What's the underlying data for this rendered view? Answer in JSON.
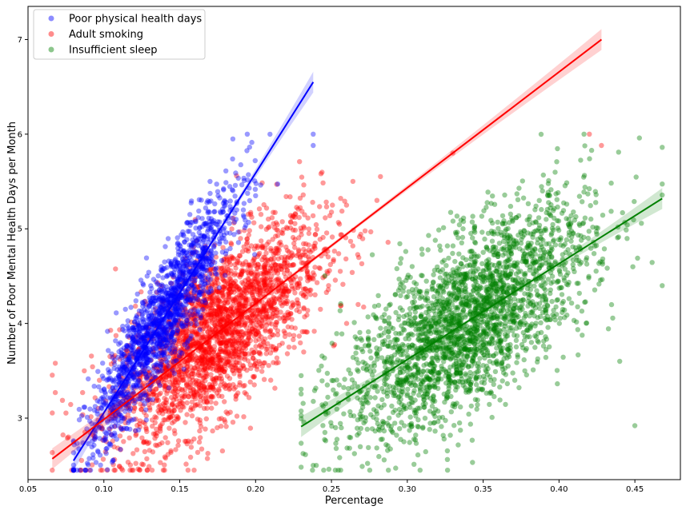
{
  "chart_data": {
    "type": "scatter",
    "title": "",
    "xlabel": "Percentage",
    "ylabel": "Number of Poor Mental Health Days per Month",
    "xlim": [
      0.05,
      0.48
    ],
    "ylim": [
      2.35,
      7.35
    ],
    "xticks": [
      "0.05",
      "0.10",
      "0.15",
      "0.20",
      "0.25",
      "0.30",
      "0.35",
      "0.40",
      "0.45"
    ],
    "yticks": [
      "3",
      "4",
      "5",
      "6",
      "7"
    ],
    "grid": false,
    "legend_position": "top-left",
    "series": [
      {
        "name": "Poor physical health days",
        "color": "#0000ff",
        "point_alpha": 0.4,
        "x_range": [
          0.08,
          0.238
        ],
        "regression": {
          "x": [
            0.08,
            0.238
          ],
          "y": [
            2.55,
            6.55
          ]
        },
        "cloud": {
          "x_mean": 0.138,
          "x_sd": 0.024,
          "y_at_x": {
            "x": [
              0.08,
              0.238
            ],
            "y": [
              2.55,
              6.55
            ]
          },
          "y_resid_sd": 0.28,
          "n": 1600
        },
        "outliers": [
          {
            "x": 0.185,
            "y": 5.95
          },
          {
            "x": 0.238,
            "y": 5.88
          },
          {
            "x": 0.2,
            "y": 5.35
          },
          {
            "x": 0.17,
            "y": 5.5
          }
        ]
      },
      {
        "name": "Adult smoking",
        "color": "#ff0000",
        "point_alpha": 0.4,
        "x_range": [
          0.066,
          0.428
        ],
        "regression": {
          "x": [
            0.066,
            0.428
          ],
          "y": [
            2.57,
            7.0
          ]
        },
        "cloud": {
          "x_mean": 0.175,
          "x_sd": 0.034,
          "y_at_x": {
            "x": [
              0.066,
              0.428
            ],
            "y": [
              2.57,
              7.0
            ]
          },
          "y_resid_sd": 0.42,
          "n": 2600
        },
        "outliers": [
          {
            "x": 0.068,
            "y": 3.58
          },
          {
            "x": 0.068,
            "y": 3.27
          },
          {
            "x": 0.428,
            "y": 5.88
          },
          {
            "x": 0.42,
            "y": 6.0
          },
          {
            "x": 0.33,
            "y": 5.8
          },
          {
            "x": 0.28,
            "y": 5.3
          },
          {
            "x": 0.26,
            "y": 4.0
          }
        ]
      },
      {
        "name": "Insufficient sleep",
        "color": "#008000",
        "point_alpha": 0.4,
        "x_range": [
          0.23,
          0.468
        ],
        "regression": {
          "x": [
            0.23,
            0.468
          ],
          "y": [
            2.91,
            5.32
          ]
        },
        "cloud": {
          "x_mean": 0.34,
          "x_sd": 0.04,
          "y_at_x": {
            "x": [
              0.23,
              0.468
            ],
            "y": [
              2.91,
              5.32
            ]
          },
          "y_resid_sd": 0.45,
          "n": 2600
        },
        "outliers": [
          {
            "x": 0.468,
            "y": 4.4
          },
          {
            "x": 0.453,
            "y": 5.96
          },
          {
            "x": 0.45,
            "y": 2.92
          },
          {
            "x": 0.44,
            "y": 3.6
          },
          {
            "x": 0.24,
            "y": 2.5
          }
        ]
      }
    ]
  }
}
